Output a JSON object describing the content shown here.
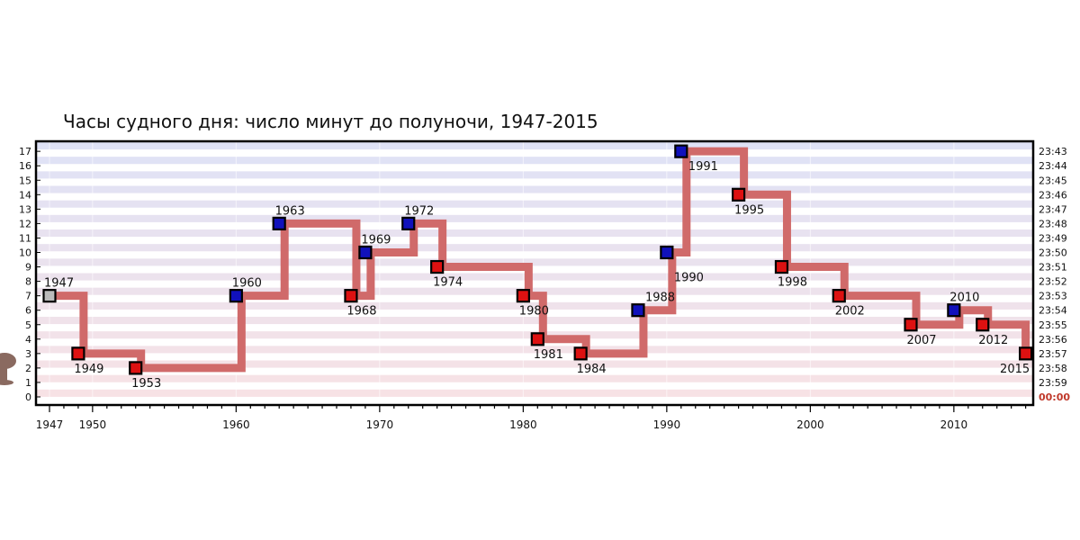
{
  "chart_data": {
    "type": "line",
    "title": "Часы судного дня: число минут до полуночи, 1947-2015",
    "xlabel": "",
    "ylabel": "",
    "xlim": [
      1946,
      2016
    ],
    "ylim": [
      0,
      18
    ],
    "x_ticks": [
      1947,
      1950,
      1960,
      1970,
      1980,
      1990,
      2000,
      2010
    ],
    "y_ticks": [
      0,
      1,
      2,
      3,
      4,
      5,
      6,
      7,
      8,
      9,
      10,
      11,
      12,
      13,
      14,
      15,
      16,
      17
    ],
    "right_axis_labels": [
      "00:00",
      "23:59",
      "23:58",
      "23:57",
      "23:56",
      "23:55",
      "23:54",
      "23:53",
      "23:52",
      "23:51",
      "23:50",
      "23:49",
      "23:48",
      "23:47",
      "23:46",
      "23:45",
      "23:44",
      "23:43"
    ],
    "grid": true,
    "step": "post",
    "points": [
      {
        "year": 1947,
        "minutes": 7,
        "label": "1947",
        "marker": "gray"
      },
      {
        "year": 1949,
        "minutes": 3,
        "label": "1949",
        "marker": "red"
      },
      {
        "year": 1953,
        "minutes": 2,
        "label": "1953",
        "marker": "red"
      },
      {
        "year": 1960,
        "minutes": 7,
        "label": "1960",
        "marker": "blue"
      },
      {
        "year": 1963,
        "minutes": 12,
        "label": "1963",
        "marker": "blue"
      },
      {
        "year": 1968,
        "minutes": 7,
        "label": "1968",
        "marker": "red"
      },
      {
        "year": 1969,
        "minutes": 10,
        "label": "1969",
        "marker": "blue"
      },
      {
        "year": 1972,
        "minutes": 12,
        "label": "1972",
        "marker": "blue"
      },
      {
        "year": 1974,
        "minutes": 9,
        "label": "1974",
        "marker": "red"
      },
      {
        "year": 1980,
        "minutes": 7,
        "label": "1980",
        "marker": "red"
      },
      {
        "year": 1981,
        "minutes": 4,
        "label": "1981",
        "marker": "red"
      },
      {
        "year": 1984,
        "minutes": 3,
        "label": "1984",
        "marker": "red"
      },
      {
        "year": 1988,
        "minutes": 6,
        "label": "1988",
        "marker": "blue"
      },
      {
        "year": 1990,
        "minutes": 10,
        "label": "1990",
        "marker": "blue"
      },
      {
        "year": 1991,
        "minutes": 17,
        "label": "1991",
        "marker": "blue"
      },
      {
        "year": 1995,
        "minutes": 14,
        "label": "1995",
        "marker": "red"
      },
      {
        "year": 1998,
        "minutes": 9,
        "label": "1998",
        "marker": "red"
      },
      {
        "year": 2002,
        "minutes": 7,
        "label": "2002",
        "marker": "red"
      },
      {
        "year": 2007,
        "minutes": 5,
        "label": "2007",
        "marker": "red"
      },
      {
        "year": 2010,
        "minutes": 6,
        "label": "2010",
        "marker": "blue"
      },
      {
        "year": 2012,
        "minutes": 5,
        "label": "2012",
        "marker": "red"
      },
      {
        "year": 2015,
        "minutes": 3,
        "label": "2015",
        "marker": "red"
      }
    ],
    "colors": {
      "line": "#d06a6a",
      "red_marker": "#dd1111",
      "blue_marker": "#1111bb",
      "gray_marker": "#bbbbbb",
      "band_top": "#dfe2f6",
      "band_bottom": "#f8e2e4",
      "midnight_label": "#c0392b"
    },
    "icons": [
      "mushroom-cloud-icon"
    ]
  }
}
